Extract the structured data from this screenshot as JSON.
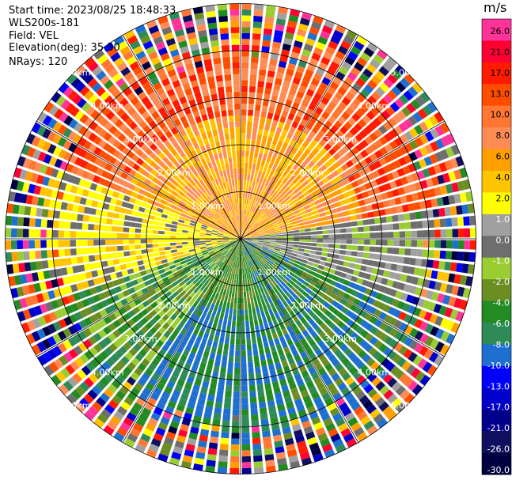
{
  "header": {
    "start_time": "Start time: 2023/08/25 18:48:33",
    "station": "WLS200s-181",
    "field": "Field: VEL",
    "elevation": "Elevation(deg): 35.30",
    "nrays": "NRays: 120"
  },
  "chart_data": {
    "type": "heatmap",
    "projection": "polar-ppi",
    "ray_count": 120,
    "range_rings_km": [
      1,
      2,
      3,
      4,
      5
    ],
    "range_labels": {
      "1": "1.00km",
      "2": "2.00km",
      "3": "3.00km",
      "4": "4.00km",
      "5": "5.00km"
    },
    "radial_lines_deg": [
      0,
      30,
      60,
      90,
      120,
      150,
      180,
      210,
      240,
      270,
      300,
      330
    ],
    "colorbar": {
      "unit": "m/s",
      "labels": [
        "26.0",
        "21.0",
        "17.0",
        "13.0",
        "10.0",
        "8.0",
        "6.0",
        "4.0",
        "2.0",
        "1.0",
        "0.0",
        "-1.0",
        "-2.0",
        "-4.0",
        "-6.0",
        "-8.0",
        "-10.0",
        "-13.0",
        "-17.0",
        "-21.0",
        "-26.0",
        "-30.0"
      ],
      "colors": [
        "#ff3399",
        "#ff0033",
        "#ff1a00",
        "#ff4d00",
        "#ff7733",
        "#ff8c55",
        "#ff9f00",
        "#ffc400",
        "#ffff00",
        "#a0a0a0",
        "#6e6e6e",
        "#9acd32",
        "#6b8e23",
        "#228b22",
        "#2e8b57",
        "#1e6fd0",
        "#0000ff",
        "#0000cc",
        "#00008b",
        "#101060",
        "#000040"
      ]
    }
  }
}
